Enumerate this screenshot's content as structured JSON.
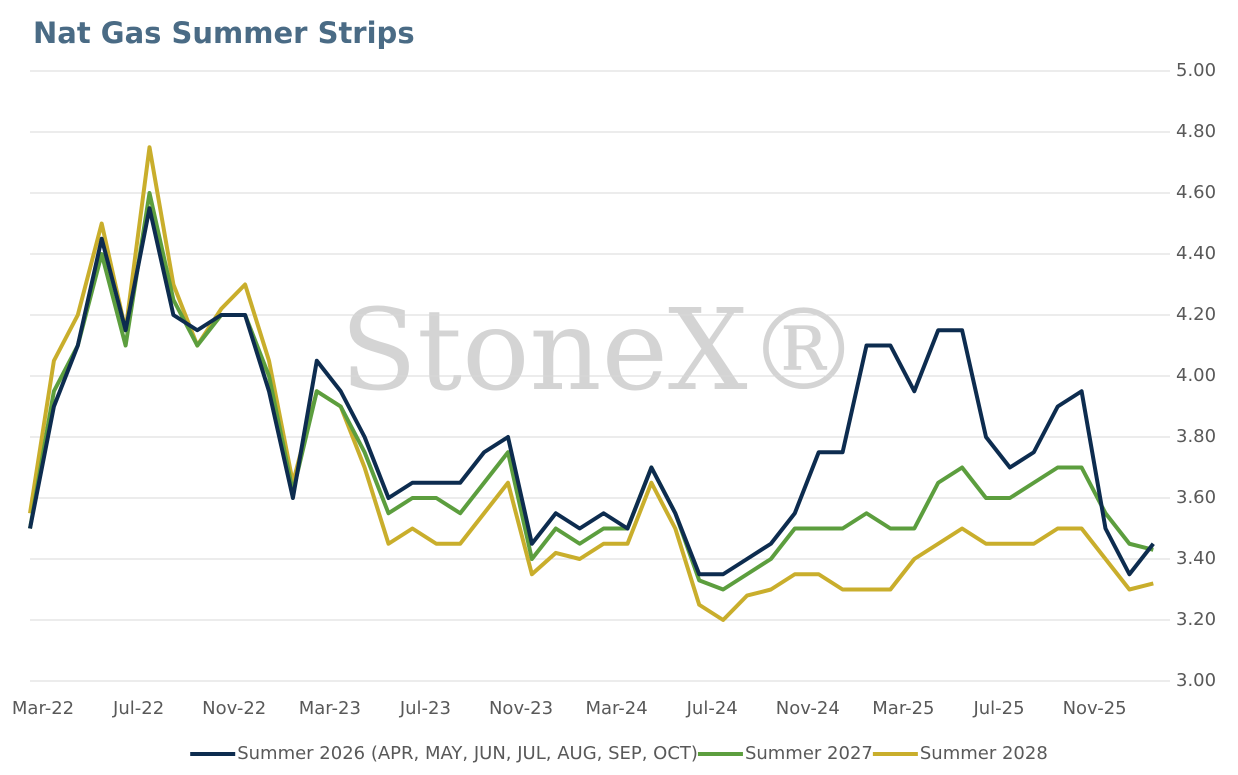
{
  "chart_data": {
    "type": "line",
    "title": "Nat Gas Summer Strips",
    "watermark": "StoneX®",
    "categories": [
      "Mar-22",
      null,
      null,
      null,
      "Jul-22",
      null,
      null,
      null,
      "Nov-22",
      null,
      null,
      null,
      "Mar-23",
      null,
      null,
      null,
      "Jul-23",
      null,
      null,
      null,
      "Nov-23",
      null,
      null,
      null,
      "Mar-24",
      null,
      null,
      null,
      "Jul-24",
      null,
      null,
      null,
      "Nov-24",
      null,
      null,
      null,
      "Mar-25",
      null,
      null,
      null,
      "Jul-25",
      null,
      null,
      null,
      "Nov-25",
      null,
      null,
      null
    ],
    "series": [
      {
        "name": "Summer 2026 (APR, MAY, JUN, JUL, AUG, SEP, OCT)",
        "color": "#0d2c4f",
        "values": [
          3.5,
          3.9,
          4.1,
          4.45,
          4.15,
          4.55,
          4.2,
          4.15,
          4.2,
          4.2,
          3.95,
          3.6,
          4.05,
          3.95,
          3.8,
          3.6,
          3.65,
          3.65,
          3.65,
          3.75,
          3.8,
          3.45,
          3.55,
          3.5,
          3.55,
          3.5,
          3.7,
          3.55,
          3.35,
          3.35,
          3.4,
          3.45,
          3.55,
          3.75,
          3.75,
          4.1,
          4.1,
          3.95,
          4.15,
          4.15,
          3.8,
          3.7,
          3.75,
          3.9,
          3.95,
          3.5,
          3.35,
          3.45
        ]
      },
      {
        "name": "Summer 2027",
        "color": "#5c9e3e",
        "values": [
          3.5,
          3.95,
          4.1,
          4.4,
          4.1,
          4.6,
          4.25,
          4.1,
          4.2,
          4.2,
          4.0,
          3.62,
          3.95,
          3.9,
          3.75,
          3.55,
          3.6,
          3.6,
          3.55,
          3.65,
          3.75,
          3.4,
          3.5,
          3.45,
          3.5,
          3.5,
          3.7,
          3.55,
          3.33,
          3.3,
          3.35,
          3.4,
          3.5,
          3.5,
          3.5,
          3.55,
          3.5,
          3.5,
          3.65,
          3.7,
          3.6,
          3.6,
          3.65,
          3.7,
          3.7,
          3.55,
          3.45,
          3.43
        ]
      },
      {
        "name": "Summer 2028",
        "color": "#c9ae2c",
        "values": [
          3.55,
          4.05,
          4.2,
          4.5,
          4.15,
          4.75,
          4.3,
          4.1,
          4.22,
          4.3,
          4.05,
          3.65,
          3.95,
          3.9,
          3.7,
          3.45,
          3.5,
          3.45,
          3.45,
          3.55,
          3.65,
          3.35,
          3.42,
          3.4,
          3.45,
          3.45,
          3.65,
          3.5,
          3.25,
          3.2,
          3.28,
          3.3,
          3.35,
          3.35,
          3.3,
          3.3,
          3.3,
          3.4,
          3.45,
          3.5,
          3.45,
          3.45,
          3.45,
          3.5,
          3.5,
          3.4,
          3.3,
          3.32
        ]
      }
    ],
    "ylim": [
      3,
      5
    ],
    "yticks": [
      {
        "value": 3,
        "label": "3.00"
      },
      {
        "value": 3.2,
        "label": "3.20"
      },
      {
        "value": 3.4,
        "label": "3.40"
      },
      {
        "value": 3.6,
        "label": "3.60"
      },
      {
        "value": 3.8,
        "label": "3.80"
      },
      {
        "value": 4,
        "label": "4.00"
      },
      {
        "value": 4.2,
        "label": "4.20"
      },
      {
        "value": 4.4,
        "label": "4.40"
      },
      {
        "value": 4.6,
        "label": "4.60"
      },
      {
        "value": 4.8,
        "label": "4.80"
      },
      {
        "value": 5,
        "label": "5.00"
      }
    ],
    "grid": true
  }
}
